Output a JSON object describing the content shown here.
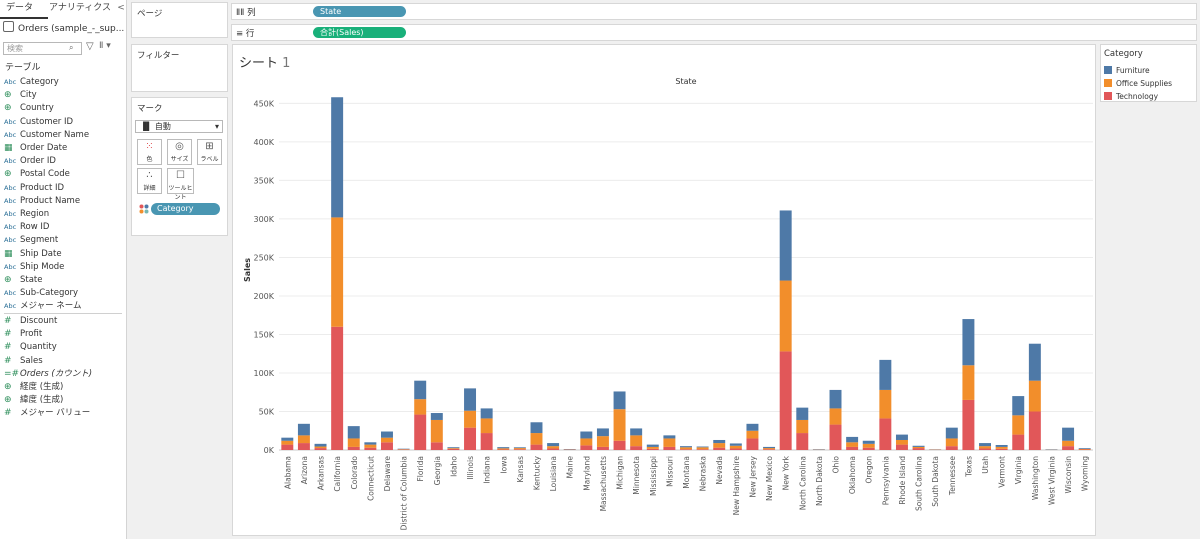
{
  "data_pane": {
    "tabs": [
      "データ",
      "アナリティクス"
    ],
    "collapse_glyph": "<",
    "datasource": "Orders (sample_-_sup...",
    "search_placeholder": "検索",
    "table_header": "テーブル",
    "dimensions": [
      {
        "type": "Abc",
        "name": "Category"
      },
      {
        "type": "globe",
        "name": "City"
      },
      {
        "type": "globe",
        "name": "Country"
      },
      {
        "type": "Abc",
        "name": "Customer ID"
      },
      {
        "type": "Abc",
        "name": "Customer Name"
      },
      {
        "type": "date",
        "name": "Order Date"
      },
      {
        "type": "Abc",
        "name": "Order ID"
      },
      {
        "type": "globe",
        "name": "Postal Code"
      },
      {
        "type": "Abc",
        "name": "Product ID"
      },
      {
        "type": "Abc",
        "name": "Product Name"
      },
      {
        "type": "Abc",
        "name": "Region"
      },
      {
        "type": "Abc",
        "name": "Row ID"
      },
      {
        "type": "Abc",
        "name": "Segment"
      },
      {
        "type": "date",
        "name": "Ship Date"
      },
      {
        "type": "Abc",
        "name": "Ship Mode"
      },
      {
        "type": "globe",
        "name": "State"
      },
      {
        "type": "Abc",
        "name": "Sub-Category"
      },
      {
        "type": "Abc",
        "name": "メジャー ネーム"
      }
    ],
    "measures": [
      {
        "type": "#",
        "name": "Discount"
      },
      {
        "type": "#",
        "name": "Profit"
      },
      {
        "type": "#",
        "name": "Quantity"
      },
      {
        "type": "#",
        "name": "Sales"
      },
      {
        "type": "=#",
        "name": "Orders (カウント)"
      },
      {
        "type": "globe",
        "name": "経度 (生成)"
      },
      {
        "type": "globe",
        "name": "緯度 (生成)"
      },
      {
        "type": "#",
        "name": "メジャー バリュー"
      }
    ]
  },
  "cards": {
    "pages": "ページ",
    "filters": "フィルター",
    "marks": "マーク",
    "mark_type": "自動",
    "mark_buttons": [
      "色",
      "サイズ",
      "ラベル",
      "詳細",
      "ツールヒント"
    ],
    "color_pill": "Category"
  },
  "shelves": {
    "columns_label": "列",
    "columns_pill": "State",
    "rows_label": "行",
    "rows_pill": "合計(Sales)"
  },
  "sheet": {
    "title": "シート",
    "number": "1"
  },
  "legend": {
    "title": "Category",
    "items": [
      {
        "name": "Furniture",
        "color": "#4e79a7"
      },
      {
        "name": "Office Supplies",
        "color": "#f28e2b"
      },
      {
        "name": "Technology",
        "color": "#e15759"
      }
    ]
  },
  "chart_data": {
    "type": "bar",
    "stacked": true,
    "title": "",
    "header": "State",
    "xlabel": "",
    "ylabel": "Sales",
    "ylim": [
      0,
      470000
    ],
    "yticks": [
      0,
      50000,
      100000,
      150000,
      200000,
      250000,
      300000,
      350000,
      400000,
      450000
    ],
    "ytick_labels": [
      "0K",
      "50K",
      "100K",
      "150K",
      "200K",
      "250K",
      "300K",
      "350K",
      "400K",
      "450K"
    ],
    "grid": true,
    "categories": [
      "Alabama",
      "Arizona",
      "Arkansas",
      "California",
      "Colorado",
      "Connecticut",
      "Delaware",
      "District of Columbia",
      "Florida",
      "Georgia",
      "Idaho",
      "Illinois",
      "Indiana",
      "Iowa",
      "Kansas",
      "Kentucky",
      "Louisiana",
      "Maine",
      "Maryland",
      "Massachusetts",
      "Michigan",
      "Minnesota",
      "Mississippi",
      "Missouri",
      "Montana",
      "Nebraska",
      "Nevada",
      "New Hampshire",
      "New Jersey",
      "New Mexico",
      "New York",
      "North Carolina",
      "North Dakota",
      "Ohio",
      "Oklahoma",
      "Oregon",
      "Pennsylvania",
      "Rhode Island",
      "South Carolina",
      "South Dakota",
      "Tennessee",
      "Texas",
      "Utah",
      "Vermont",
      "Virginia",
      "Washington",
      "West Virginia",
      "Wisconsin",
      "Wyoming"
    ],
    "series": [
      {
        "name": "Technology",
        "color": "#e15759",
        "values": [
          7000,
          9000,
          2500,
          160000,
          4000,
          3000,
          10000,
          500,
          46000,
          10000,
          1400,
          29000,
          22000,
          700,
          1000,
          7000,
          2000,
          400,
          6000,
          4000,
          12000,
          5000,
          1500,
          4000,
          1000,
          1000,
          3000,
          2000,
          15000,
          1000,
          128000,
          22000,
          200,
          33000,
          4000,
          3000,
          41000,
          7000,
          2500,
          300,
          5000,
          65000,
          2000,
          1500,
          20000,
          50000,
          100,
          5000,
          600
        ]
      },
      {
        "name": "Office Supplies",
        "color": "#f28e2b",
        "values": [
          5000,
          10000,
          2000,
          142000,
          11000,
          4000,
          6000,
          600,
          20000,
          29000,
          1000,
          22000,
          19000,
          1500,
          1500,
          15000,
          3000,
          300,
          9000,
          14000,
          41000,
          14000,
          2500,
          11000,
          2500,
          2500,
          6000,
          3500,
          10000,
          1500,
          92000,
          17000,
          300,
          21000,
          6000,
          5000,
          37000,
          6000,
          1500,
          300,
          10000,
          45000,
          3000,
          2500,
          25000,
          40000,
          300,
          7000,
          800
        ]
      },
      {
        "name": "Furniture",
        "color": "#4e79a7",
        "values": [
          4000,
          15000,
          3500,
          156000,
          16000,
          3000,
          8000,
          600,
          24000,
          9000,
          1200,
          29000,
          13000,
          1500,
          1000,
          14000,
          4000,
          500,
          9000,
          10000,
          23000,
          9000,
          3000,
          4000,
          1500,
          1000,
          4000,
          3000,
          9000,
          1500,
          91000,
          16000,
          500,
          24000,
          7000,
          4000,
          39000,
          7000,
          1500,
          300,
          14000,
          60000,
          4000,
          2500,
          25000,
          48000,
          500,
          17000,
          1000
        ]
      }
    ]
  }
}
